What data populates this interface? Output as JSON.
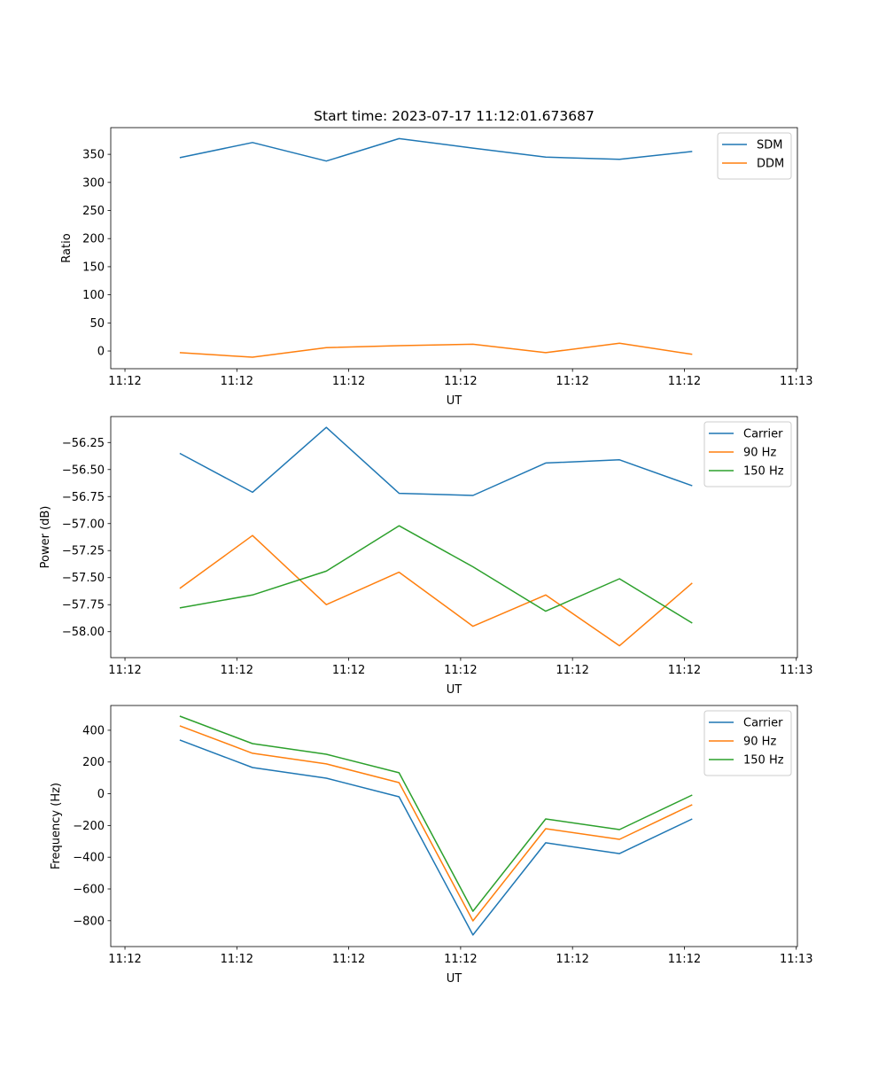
{
  "chart_data": [
    {
      "type": "line",
      "title": "Start time: 2023-07-17 11:12:01.673687",
      "xlabel": "UT",
      "ylabel": "Ratio",
      "x_seconds": [
        4.9,
        11.4,
        18.0,
        24.5,
        31.1,
        37.6,
        44.2,
        50.7
      ],
      "xlim": [
        -1.27,
        60.1
      ],
      "x_ticks": [
        0,
        10,
        20,
        30,
        40,
        50,
        60
      ],
      "x_tick_labels": [
        "11:12",
        "11:12",
        "11:12",
        "11:12",
        "11:12",
        "11:12",
        "11:13"
      ],
      "ylim": [
        -31.5,
        397.5
      ],
      "y_ticks": [
        0,
        50,
        100,
        150,
        200,
        250,
        300,
        350
      ],
      "y_tick_labels": [
        "0",
        "50",
        "100",
        "150",
        "200",
        "250",
        "300",
        "350"
      ],
      "legend": "top-right",
      "series": [
        {
          "name": "SDM",
          "color": "#1f77b4",
          "values": [
            344,
            371,
            338,
            378,
            361,
            345,
            341,
            355
          ]
        },
        {
          "name": "DDM",
          "color": "#ff7f0e",
          "values": [
            -3,
            -11,
            6,
            9.5,
            12,
            -3,
            14,
            -6
          ]
        }
      ]
    },
    {
      "type": "line",
      "title": "",
      "xlabel": "UT",
      "ylabel": "Power (dB)",
      "x_seconds": [
        4.9,
        11.4,
        18.0,
        24.5,
        31.1,
        37.6,
        44.2,
        50.7
      ],
      "xlim": [
        -1.27,
        60.1
      ],
      "x_ticks": [
        0,
        10,
        20,
        30,
        40,
        50,
        60
      ],
      "x_tick_labels": [
        "11:12",
        "11:12",
        "11:12",
        "11:12",
        "11:12",
        "11:12",
        "11:13"
      ],
      "ylim": [
        -58.24,
        -56.01
      ],
      "y_ticks": [
        -58.0,
        -57.75,
        -57.5,
        -57.25,
        -57.0,
        -56.75,
        -56.5,
        -56.25
      ],
      "y_tick_labels": [
        "−58.00",
        "−57.75",
        "−57.50",
        "−57.25",
        "−57.00",
        "−56.75",
        "−56.50",
        "−56.25"
      ],
      "legend": "top-right",
      "series": [
        {
          "name": "Carrier",
          "color": "#1f77b4",
          "values": [
            -56.35,
            -56.71,
            -56.11,
            -56.72,
            -56.74,
            -56.44,
            -56.41,
            -56.65
          ]
        },
        {
          "name": "90 Hz",
          "color": "#ff7f0e",
          "values": [
            -57.6,
            -57.11,
            -57.75,
            -57.45,
            -57.95,
            -57.66,
            -58.13,
            -57.55
          ]
        },
        {
          "name": "150 Hz",
          "color": "#2ca02c",
          "values": [
            -57.78,
            -57.66,
            -57.44,
            -57.02,
            -57.4,
            -57.81,
            -57.51,
            -57.92
          ]
        }
      ]
    },
    {
      "type": "line",
      "title": "",
      "xlabel": "UT",
      "ylabel": "Frequency (Hz)",
      "x_seconds": [
        4.9,
        11.4,
        18.0,
        24.5,
        31.1,
        37.6,
        44.2,
        50.7
      ],
      "xlim": [
        -1.27,
        60.1
      ],
      "x_ticks": [
        0,
        10,
        20,
        30,
        40,
        50,
        60
      ],
      "x_tick_labels": [
        "11:12",
        "11:12",
        "11:12",
        "11:12",
        "11:12",
        "11:12",
        "11:13"
      ],
      "ylim": [
        -963,
        556
      ],
      "y_ticks": [
        -800,
        -600,
        -400,
        -200,
        0,
        200,
        400
      ],
      "y_tick_labels": [
        "−800",
        "−600",
        "−400",
        "−200",
        "0",
        "200",
        "400"
      ],
      "legend": "top-right",
      "series": [
        {
          "name": "Carrier",
          "color": "#1f77b4",
          "values": [
            339,
            165,
            98,
            -19,
            -890,
            -309,
            -377,
            -159
          ]
        },
        {
          "name": "90 Hz",
          "color": "#ff7f0e",
          "values": [
            428,
            255,
            188,
            70,
            -801,
            -220,
            -287,
            -69
          ]
        },
        {
          "name": "150 Hz",
          "color": "#2ca02c",
          "values": [
            489,
            316,
            249,
            132,
            -740,
            -159,
            -226,
            -8
          ]
        }
      ]
    }
  ]
}
